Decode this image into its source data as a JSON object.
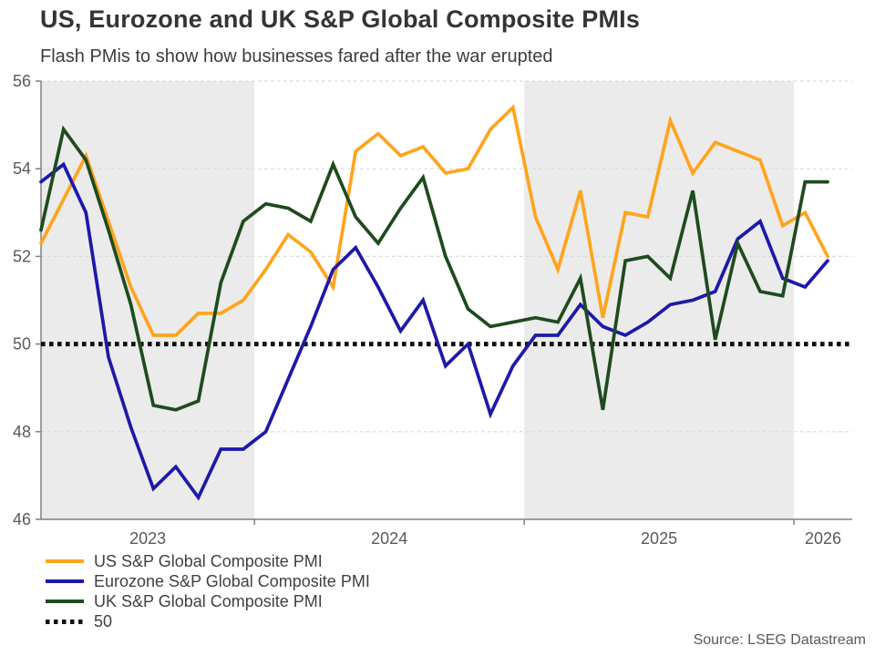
{
  "header": {
    "title": "US, Eurozone and UK S&P Global Composite PMIs",
    "subtitle": "Flash PMis to show how businesses fared after the war erupted"
  },
  "footer": {
    "source": "Source: LSEG Datastream"
  },
  "chart_data": {
    "type": "line",
    "title": "US, Eurozone and UK S&P Global Composite PMIs",
    "subtitle": "Flash PMis to show how businesses fared after the war erupted",
    "xlabel": "",
    "ylabel": "",
    "ylim": [
      46,
      56
    ],
    "yticks": [
      46,
      48,
      50,
      52,
      54,
      56
    ],
    "grid": "dashed-horizontal",
    "legend_position": "bottom-left",
    "band_color": "#ebebeb",
    "axis_color": "#808080",
    "grid_color": "#d9d9d9",
    "months": [
      "Mar 2023",
      "Apr 2023",
      "May 2023",
      "Jun 2023",
      "Jul 2023",
      "Aug 2023",
      "Sep 2023",
      "Oct 2023",
      "Nov 2023",
      "Dec 2023",
      "Jan 2024",
      "Feb 2024",
      "Mar 2024",
      "Apr 2024",
      "May 2024",
      "Jun 2024",
      "Jul 2024",
      "Aug 2024",
      "Sep 2024",
      "Oct 2024",
      "Nov 2024",
      "Dec 2024",
      "Jan 2025",
      "Feb 2025",
      "Mar 2025",
      "Apr 2025",
      "May 2025",
      "Jun 2025",
      "Jul 2025",
      "Aug 2025",
      "Sep 2025",
      "Oct 2025",
      "Nov 2025",
      "Dec 2025",
      "Jan 2026",
      "Feb 2026"
    ],
    "series": [
      {
        "name": "US S&P Global Composite PMI",
        "color": "#FFA41D",
        "values": [
          52.3,
          53.3,
          54.3,
          52.8,
          51.3,
          50.2,
          50.2,
          50.7,
          50.7,
          51.0,
          51.7,
          52.5,
          52.1,
          51.3,
          54.4,
          54.8,
          54.3,
          54.5,
          53.9,
          54.0,
          54.9,
          55.4,
          52.9,
          51.7,
          53.5,
          50.6,
          53.0,
          52.9,
          55.1,
          53.9,
          54.6,
          54.4,
          54.2,
          52.7,
          53.0,
          52.0
        ]
      },
      {
        "name": "Eurozone S&P Global Composite PMI",
        "color": "#1D19A8",
        "values": [
          53.7,
          54.1,
          53.0,
          49.7,
          48.1,
          46.7,
          47.2,
          46.5,
          47.6,
          47.6,
          48.0,
          49.2,
          50.4,
          51.7,
          52.2,
          51.3,
          50.3,
          51.0,
          49.5,
          50.0,
          48.4,
          49.5,
          50.2,
          50.2,
          50.9,
          50.4,
          50.2,
          50.5,
          50.9,
          51.0,
          51.2,
          52.4,
          52.8,
          51.5,
          51.3,
          51.9
        ]
      },
      {
        "name": "UK S&P Global Composite PMI",
        "color": "#1E4B1E",
        "values": [
          52.6,
          54.9,
          54.2,
          52.6,
          50.9,
          48.6,
          48.5,
          48.7,
          51.4,
          52.8,
          53.2,
          53.1,
          52.8,
          54.1,
          52.9,
          52.3,
          53.1,
          53.8,
          52.0,
          50.8,
          50.4,
          50.5,
          50.6,
          50.5,
          51.5,
          48.5,
          51.9,
          52.0,
          51.5,
          53.5,
          50.1,
          52.3,
          51.2,
          51.1,
          53.7,
          53.7
        ]
      }
    ],
    "reference_line": {
      "label": "50",
      "value": 50,
      "color": "#111111",
      "style": "dotted"
    },
    "years": [
      {
        "label": "2023",
        "start": 0,
        "end": 9.5,
        "shaded": true
      },
      {
        "label": "2024",
        "start": 9.5,
        "end": 21.5,
        "shaded": false
      },
      {
        "label": "2025",
        "start": 21.5,
        "end": 33.5,
        "shaded": true
      },
      {
        "label": "2026",
        "start": 33.5,
        "end": 36.2,
        "shaded": false
      }
    ]
  }
}
